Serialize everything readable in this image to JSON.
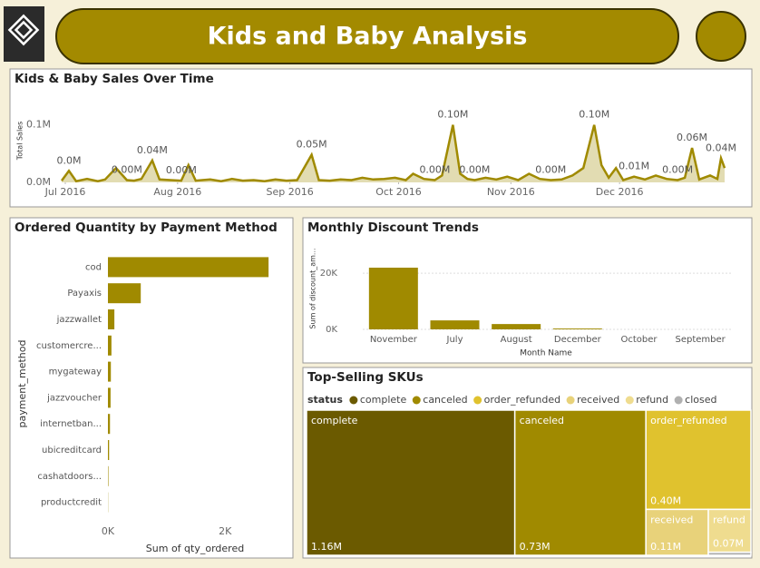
{
  "header": {
    "title": "Kids and Baby Analysis"
  },
  "chart_data": [
    {
      "type": "line",
      "title": "Kids & Baby Sales Over Time",
      "y_label": "Total Sales",
      "color": "#a08a00",
      "x": [
        -1,
        1,
        3,
        6,
        9,
        11,
        14,
        17,
        19,
        21,
        24,
        26,
        29,
        32,
        34,
        36,
        40,
        43,
        46,
        49,
        52,
        55,
        58,
        61,
        64,
        68,
        70,
        73,
        76,
        79,
        82,
        85,
        88,
        91,
        94,
        96,
        99,
        102,
        104,
        107,
        109,
        111,
        113,
        116,
        119,
        122,
        125,
        128,
        131,
        134,
        137,
        140,
        143,
        146,
        148,
        150,
        152,
        154,
        157,
        160,
        163,
        166,
        169,
        171,
        173,
        175,
        178,
        180,
        181,
        182
      ],
      "values": [
        3000,
        20000,
        2000,
        6000,
        2000,
        5000,
        25000,
        4000,
        3000,
        6000,
        38000,
        5000,
        4000,
        3000,
        30000,
        3000,
        5000,
        2000,
        6000,
        3000,
        4000,
        2000,
        5000,
        3000,
        4000,
        48000,
        4000,
        3000,
        5000,
        4000,
        8000,
        5000,
        6000,
        8000,
        4000,
        15000,
        6000,
        4000,
        12000,
        100000,
        15000,
        6000,
        4000,
        8000,
        5000,
        10000,
        4000,
        15000,
        6000,
        4000,
        5000,
        12000,
        25000,
        100000,
        30000,
        8000,
        25000,
        4000,
        10000,
        5000,
        12000,
        6000,
        4000,
        8000,
        60000,
        5000,
        12000,
        6000,
        42000,
        25000
      ],
      "value_labels": [
        null,
        "0.0M",
        null,
        null,
        null,
        null,
        null,
        "0.00M",
        null,
        null,
        "0.04M",
        null,
        null,
        "0.00M",
        null,
        null,
        null,
        null,
        null,
        null,
        null,
        null,
        null,
        null,
        null,
        "0.05M",
        null,
        null,
        null,
        null,
        null,
        null,
        null,
        null,
        null,
        null,
        null,
        "0.00M",
        null,
        "0.10M",
        null,
        null,
        "0.00M",
        null,
        null,
        null,
        null,
        null,
        null,
        "0.00M",
        null,
        null,
        null,
        "0.10M",
        null,
        null,
        null,
        null,
        "0.01M",
        null,
        null,
        null,
        "0.00M",
        null,
        "0.06M",
        null,
        null,
        null,
        "0.04M",
        null
      ],
      "xlim": [
        -1,
        183
      ],
      "xticks": [
        {
          "value": 0,
          "label": "Jul 2016"
        },
        {
          "value": 31,
          "label": "Aug 2016"
        },
        {
          "value": 62,
          "label": "Sep 2016"
        },
        {
          "value": 92,
          "label": "Oct 2016"
        },
        {
          "value": 123,
          "label": "Nov 2016"
        },
        {
          "value": 153,
          "label": "Dec 2016"
        }
      ],
      "ylim": [
        0,
        120000
      ],
      "yticks": [
        {
          "value": 0,
          "label": "0.0M"
        },
        {
          "value": 100000,
          "label": "0.1M"
        }
      ]
    },
    {
      "type": "hbar",
      "title": "Ordered Quantity by Payment Method",
      "x_label": "Sum of qty_ordered",
      "y_label": "payment_method",
      "color": "#a08a00",
      "categories": [
        "cod",
        "Payaxis",
        "jazzwallet",
        "customercre...",
        "mygateway",
        "jazzvoucher",
        "internetban...",
        "ubicreditcard",
        "cashatdoors...",
        "productcredit"
      ],
      "values": [
        2740,
        560,
        110,
        60,
        50,
        45,
        35,
        20,
        8,
        3
      ],
      "xlim": [
        0,
        2800
      ],
      "xticks": [
        {
          "value": 0,
          "label": "0K"
        },
        {
          "value": 2000,
          "label": "2K"
        }
      ]
    },
    {
      "type": "bar",
      "title": "Monthly Discount Trends",
      "x_label": "Month Name",
      "y_label": "Sum of discount_am...",
      "color": "#a08a00",
      "grid": true,
      "categories": [
        "November",
        "July",
        "August",
        "December",
        "October",
        "September"
      ],
      "values": [
        22000,
        3200,
        1900,
        300,
        0,
        0
      ],
      "ylim": [
        0,
        22000
      ],
      "yticks": [
        {
          "value": 0,
          "label": "0K"
        },
        {
          "value": 20000,
          "label": "20K"
        }
      ]
    },
    {
      "type": "treemap",
      "title": "Top-Selling SKUs",
      "legend_title": "status",
      "categories": [
        "complete",
        "canceled",
        "order_refunded",
        "received",
        "refund",
        "closed"
      ],
      "values": [
        1160000,
        730000,
        400000,
        110000,
        70000,
        5000
      ],
      "value_labels": [
        "1.16M",
        "0.73M",
        "0.40M",
        "0.11M",
        "0.07M",
        null
      ],
      "colors": [
        "#6b5a00",
        "#a08a00",
        "#e0c22e",
        "#e8d27a",
        "#efdc8f",
        "#b0b0b0"
      ]
    }
  ]
}
